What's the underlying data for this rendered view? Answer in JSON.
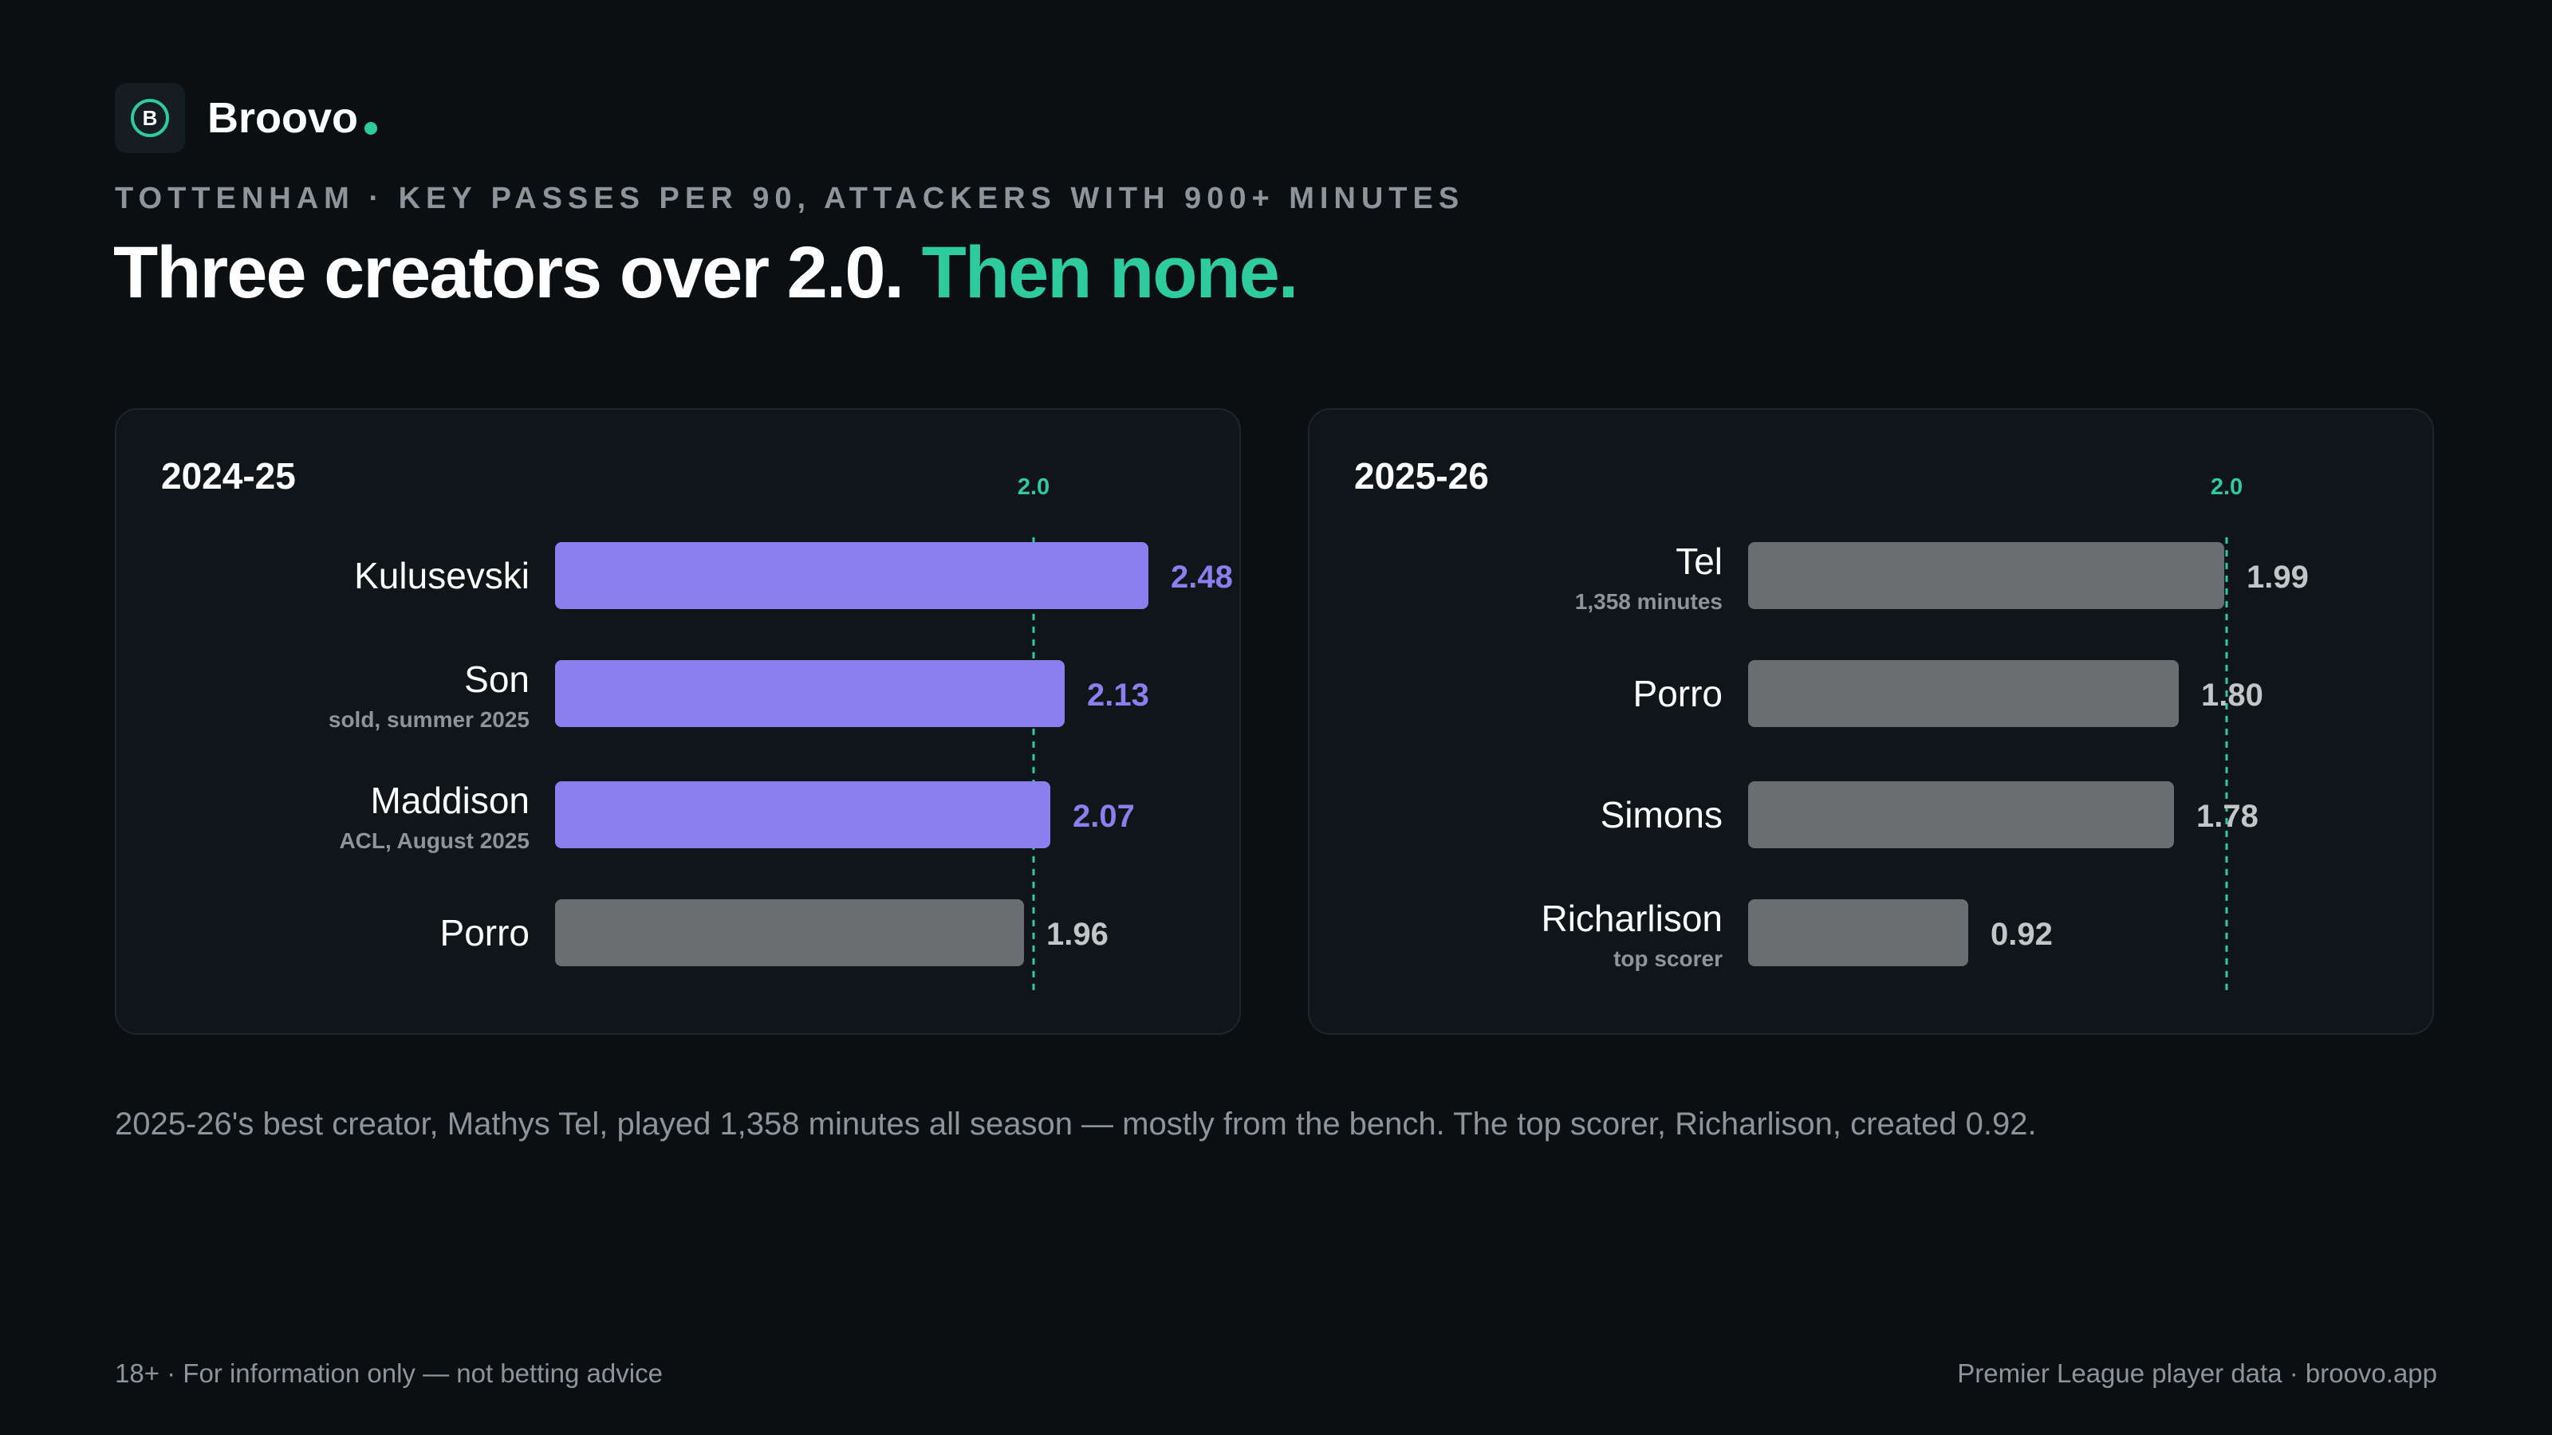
{
  "brand": {
    "name": "Broovo",
    "logo_letter": "B"
  },
  "kicker": "TOTTENHAM · KEY PASSES PER 90, ATTACKERS WITH 900+ MINUTES",
  "headline": {
    "main": "Three creators over 2.0.",
    "accent": "Then none."
  },
  "colors": {
    "highlight_bar": "#8b7ff0",
    "muted_bar": "#6a6e70",
    "reference_line": "#2ecb9c",
    "muted_value": "#c2c6c8",
    "background": "#0b0f12",
    "panel": "#0f1518"
  },
  "chart_data": [
    {
      "type": "bar",
      "orientation": "horizontal",
      "title": "2024-25",
      "reference_line": {
        "value": 2.0,
        "label": "2.0"
      },
      "xlim": [
        0,
        2.6
      ],
      "bars": [
        {
          "player": "Kulusevski",
          "note": "",
          "value": 2.48,
          "value_label": "2.48",
          "highlight": true
        },
        {
          "player": "Son",
          "note": "sold, summer 2025",
          "value": 2.13,
          "value_label": "2.13",
          "highlight": true
        },
        {
          "player": "Maddison",
          "note": "ACL, August 2025",
          "value": 2.07,
          "value_label": "2.07",
          "highlight": true
        },
        {
          "player": "Porro",
          "note": "",
          "value": 1.96,
          "value_label": "1.96",
          "highlight": false
        }
      ]
    },
    {
      "type": "bar",
      "orientation": "horizontal",
      "title": "2025-26",
      "reference_line": {
        "value": 2.0,
        "label": "2.0"
      },
      "xlim": [
        0,
        2.6
      ],
      "bars": [
        {
          "player": "Tel",
          "note": "1,358 minutes",
          "value": 1.99,
          "value_label": "1.99",
          "highlight": false
        },
        {
          "player": "Porro",
          "note": "",
          "value": 1.8,
          "value_label": "1.80",
          "highlight": false
        },
        {
          "player": "Simons",
          "note": "",
          "value": 1.78,
          "value_label": "1.78",
          "highlight": false
        },
        {
          "player": "Richarlison",
          "note": "top scorer",
          "value": 0.92,
          "value_label": "0.92",
          "highlight": false
        }
      ]
    }
  ],
  "note": "2025-26's best creator, Mathys Tel, played 1,358 minutes all season — mostly from the bench. The top scorer, Richarlison, created 0.92.",
  "footer": {
    "left": "18+ · For information only — not betting advice",
    "right": "Premier League player data · broovo.app"
  }
}
